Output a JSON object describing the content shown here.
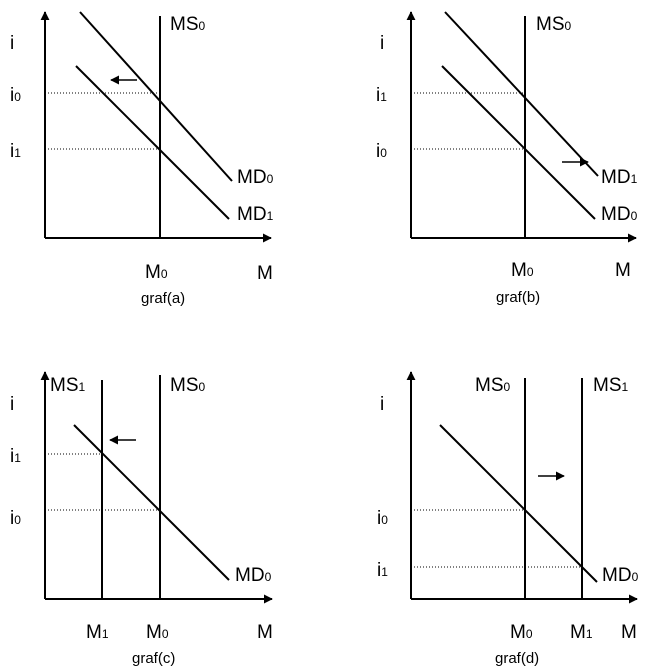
{
  "panels": [
    {
      "id": "a",
      "y_axis_label": "i",
      "x_axis_label": "M",
      "caption": "graf(a)",
      "supply_curves": [
        {
          "main": "MS",
          "sub": "0"
        }
      ],
      "demand_curves": [
        {
          "main": "MD",
          "sub": "0"
        },
        {
          "main": "MD",
          "sub": "1"
        }
      ],
      "y_levels": [
        {
          "main": "i",
          "sub": "0"
        },
        {
          "main": "i",
          "sub": "1"
        }
      ],
      "x_levels": [
        {
          "main": "M",
          "sub": "0"
        }
      ],
      "shift_arrow": "left"
    },
    {
      "id": "b",
      "y_axis_label": "i",
      "x_axis_label": "M",
      "caption": "graf(b)",
      "supply_curves": [
        {
          "main": "MS",
          "sub": "0"
        }
      ],
      "demand_curves": [
        {
          "main": "MD",
          "sub": "1"
        },
        {
          "main": "MD",
          "sub": "0"
        }
      ],
      "y_levels": [
        {
          "main": "i",
          "sub": "1"
        },
        {
          "main": "i",
          "sub": "0"
        }
      ],
      "x_levels": [
        {
          "main": "M",
          "sub": "0"
        }
      ],
      "shift_arrow": "right"
    },
    {
      "id": "c",
      "y_axis_label": "i",
      "x_axis_label": "M",
      "caption": "graf(c)",
      "supply_curves": [
        {
          "main": "MS",
          "sub": "1"
        },
        {
          "main": "MS",
          "sub": "0"
        }
      ],
      "demand_curves": [
        {
          "main": "MD",
          "sub": "0"
        }
      ],
      "y_levels": [
        {
          "main": "i",
          "sub": "1"
        },
        {
          "main": "i",
          "sub": "0"
        }
      ],
      "x_levels": [
        {
          "main": "M",
          "sub": "1"
        },
        {
          "main": "M",
          "sub": "0"
        }
      ],
      "shift_arrow": "left"
    },
    {
      "id": "d",
      "y_axis_label": "i",
      "x_axis_label": "M",
      "caption": "graf(d)",
      "supply_curves": [
        {
          "main": "MS",
          "sub": "0"
        },
        {
          "main": "MS",
          "sub": "1"
        }
      ],
      "demand_curves": [
        {
          "main": "MD",
          "sub": "0"
        }
      ],
      "y_levels": [
        {
          "main": "i",
          "sub": "0"
        },
        {
          "main": "i",
          "sub": "1"
        }
      ],
      "x_levels": [
        {
          "main": "M",
          "sub": "0"
        },
        {
          "main": "M",
          "sub": "1"
        }
      ],
      "shift_arrow": "right"
    }
  ]
}
